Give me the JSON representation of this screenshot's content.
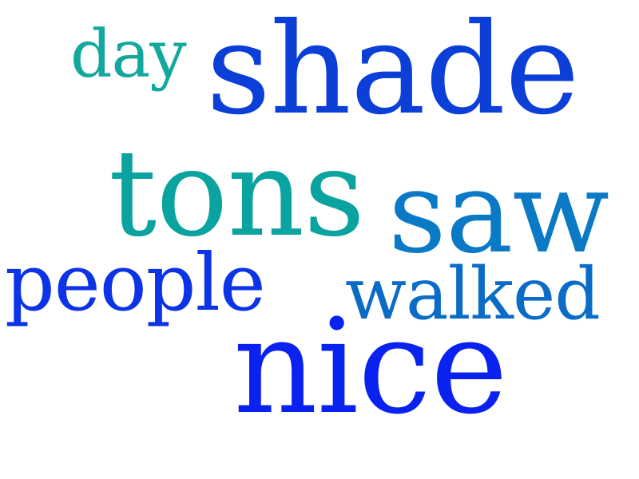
{
  "wordcloud": {
    "words": {
      "day": {
        "text": "day",
        "color": "#13a89e"
      },
      "shade": {
        "text": "shade",
        "color": "#0b3fd8"
      },
      "tons": {
        "text": "tons",
        "color": "#0aa39f"
      },
      "saw": {
        "text": "saw",
        "color": "#0b7ac6"
      },
      "people": {
        "text": "people",
        "color": "#0d33e6"
      },
      "walked": {
        "text": "walked",
        "color": "#0b6cc8"
      },
      "nice": {
        "text": "nice",
        "color": "#0a22f0"
      }
    }
  }
}
